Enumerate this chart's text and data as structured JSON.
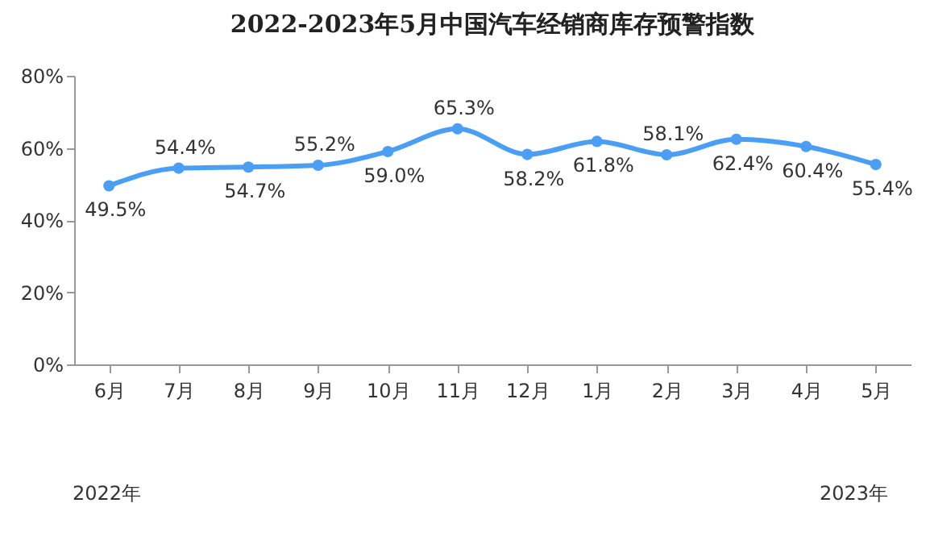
{
  "chart_data": {
    "type": "line",
    "title": "2022-2023年5月中国汽车经销商库存预警指数",
    "categories": [
      "6月",
      "7月",
      "8月",
      "9月",
      "10月",
      "11月",
      "12月",
      "1月",
      "2月",
      "3月",
      "4月",
      "5月"
    ],
    "series": [
      {
        "color": "#4a9ff5",
        "values": [
          49.5,
          54.4,
          54.7,
          55.2,
          59.0,
          65.3,
          58.2,
          61.8,
          58.1,
          62.4,
          60.4,
          55.4
        ]
      }
    ],
    "value_labels": [
      "49.5%",
      "54.4%",
      "54.7%",
      "55.2%",
      "59.0%",
      "65.3%",
      "58.2%",
      "61.8%",
      "58.1%",
      "62.4%",
      "60.4%",
      "55.4%"
    ],
    "ylim": [
      0,
      80
    ],
    "yticks": [
      {
        "value": 0,
        "label": "0%"
      },
      {
        "value": 20,
        "label": "20%"
      },
      {
        "value": 40,
        "label": "40%"
      },
      {
        "value": 60,
        "label": "60%"
      },
      {
        "value": 80,
        "label": "80%"
      }
    ],
    "grid": false,
    "marker": "circle",
    "line_style": "solid",
    "annotations": [
      "2022年",
      "2023年"
    ]
  }
}
